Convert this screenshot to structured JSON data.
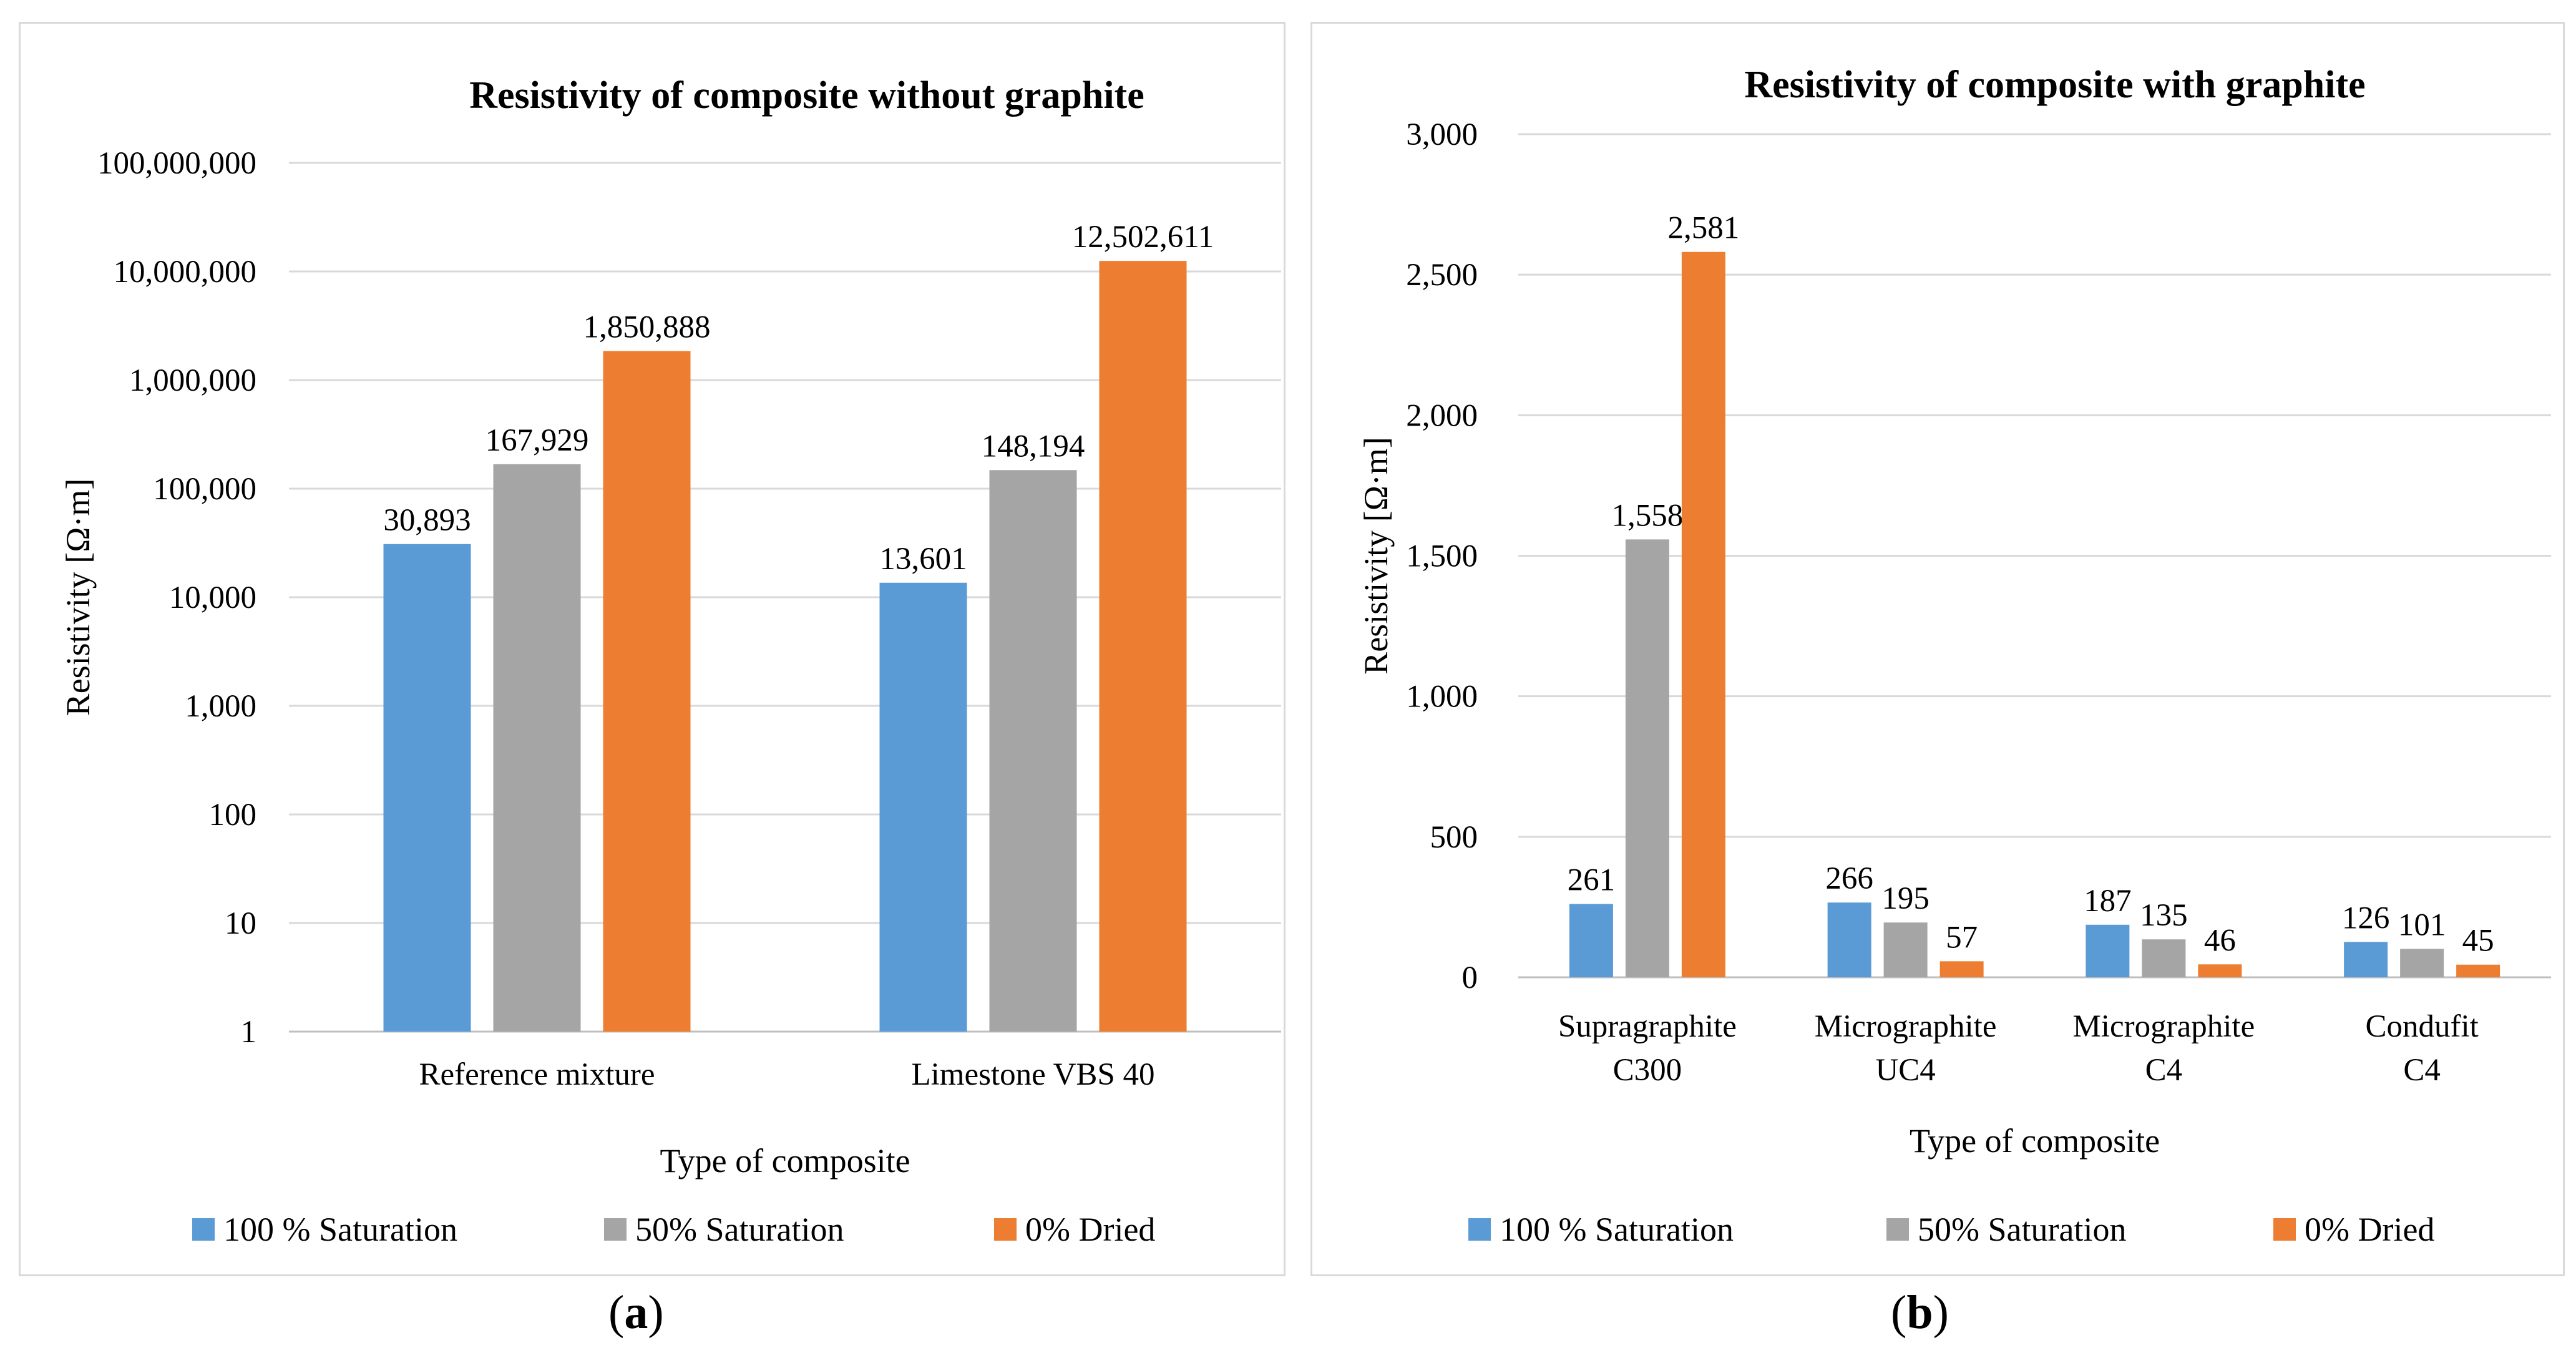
{
  "chart_data": [
    {
      "type": "bar",
      "title": "Resistivity of composite without graphite",
      "xlabel": "Type of composite",
      "ylabel": "Resistivity [Ω·m]",
      "yscale": "log",
      "ylim": [
        1,
        100000000
      ],
      "ytick_labels": [
        "1",
        "10",
        "100",
        "1,000",
        "10,000",
        "100,000",
        "1,000,000",
        "10,000,000",
        "100,000,000"
      ],
      "categories": [
        "Reference mixture",
        "Limestone VBS 40"
      ],
      "series": [
        {
          "name": "100 % Saturation",
          "color": "#5b9bd5",
          "values": [
            30893,
            13601
          ],
          "labels": [
            "30,893",
            "13,601"
          ]
        },
        {
          "name": "50% Saturation",
          "color": "#a5a5a5",
          "values": [
            167929,
            148194
          ],
          "labels": [
            "167,929",
            "148,194"
          ]
        },
        {
          "name": "0% Dried",
          "color": "#ed7d31",
          "values": [
            1850888,
            12502611
          ],
          "labels": [
            "1,850,888",
            "12,502,611"
          ]
        }
      ],
      "grid": true,
      "legend": "bottom",
      "caption": "a"
    },
    {
      "type": "bar",
      "title": "Resistivity of composite with graphite",
      "xlabel": "Type of composite",
      "ylabel": "Resistivity [Ω·m]",
      "yscale": "linear",
      "ylim": [
        0,
        3000
      ],
      "ytick_labels": [
        "0",
        "500",
        "1,000",
        "1,500",
        "2,000",
        "2,500",
        "3,000"
      ],
      "categories": [
        [
          "Supragraphite",
          "C300"
        ],
        [
          "Micrographite",
          "UC4"
        ],
        [
          "Micrographite",
          "C4"
        ],
        [
          "Condufit",
          "C4"
        ]
      ],
      "series": [
        {
          "name": "100 % Saturation",
          "color": "#5b9bd5",
          "values": [
            261,
            266,
            187,
            126
          ],
          "labels": [
            "261",
            "266",
            "187",
            "126"
          ]
        },
        {
          "name": "50% Saturation",
          "color": "#a5a5a5",
          "values": [
            1558,
            195,
            135,
            101
          ],
          "labels": [
            "1,558",
            "195",
            "135",
            "101"
          ]
        },
        {
          "name": "0% Dried",
          "color": "#ed7d31",
          "values": [
            2581,
            57,
            46,
            45
          ],
          "labels": [
            "2,581",
            "57",
            "46",
            "45"
          ]
        }
      ],
      "grid": true,
      "legend": "bottom",
      "caption": "b"
    }
  ]
}
